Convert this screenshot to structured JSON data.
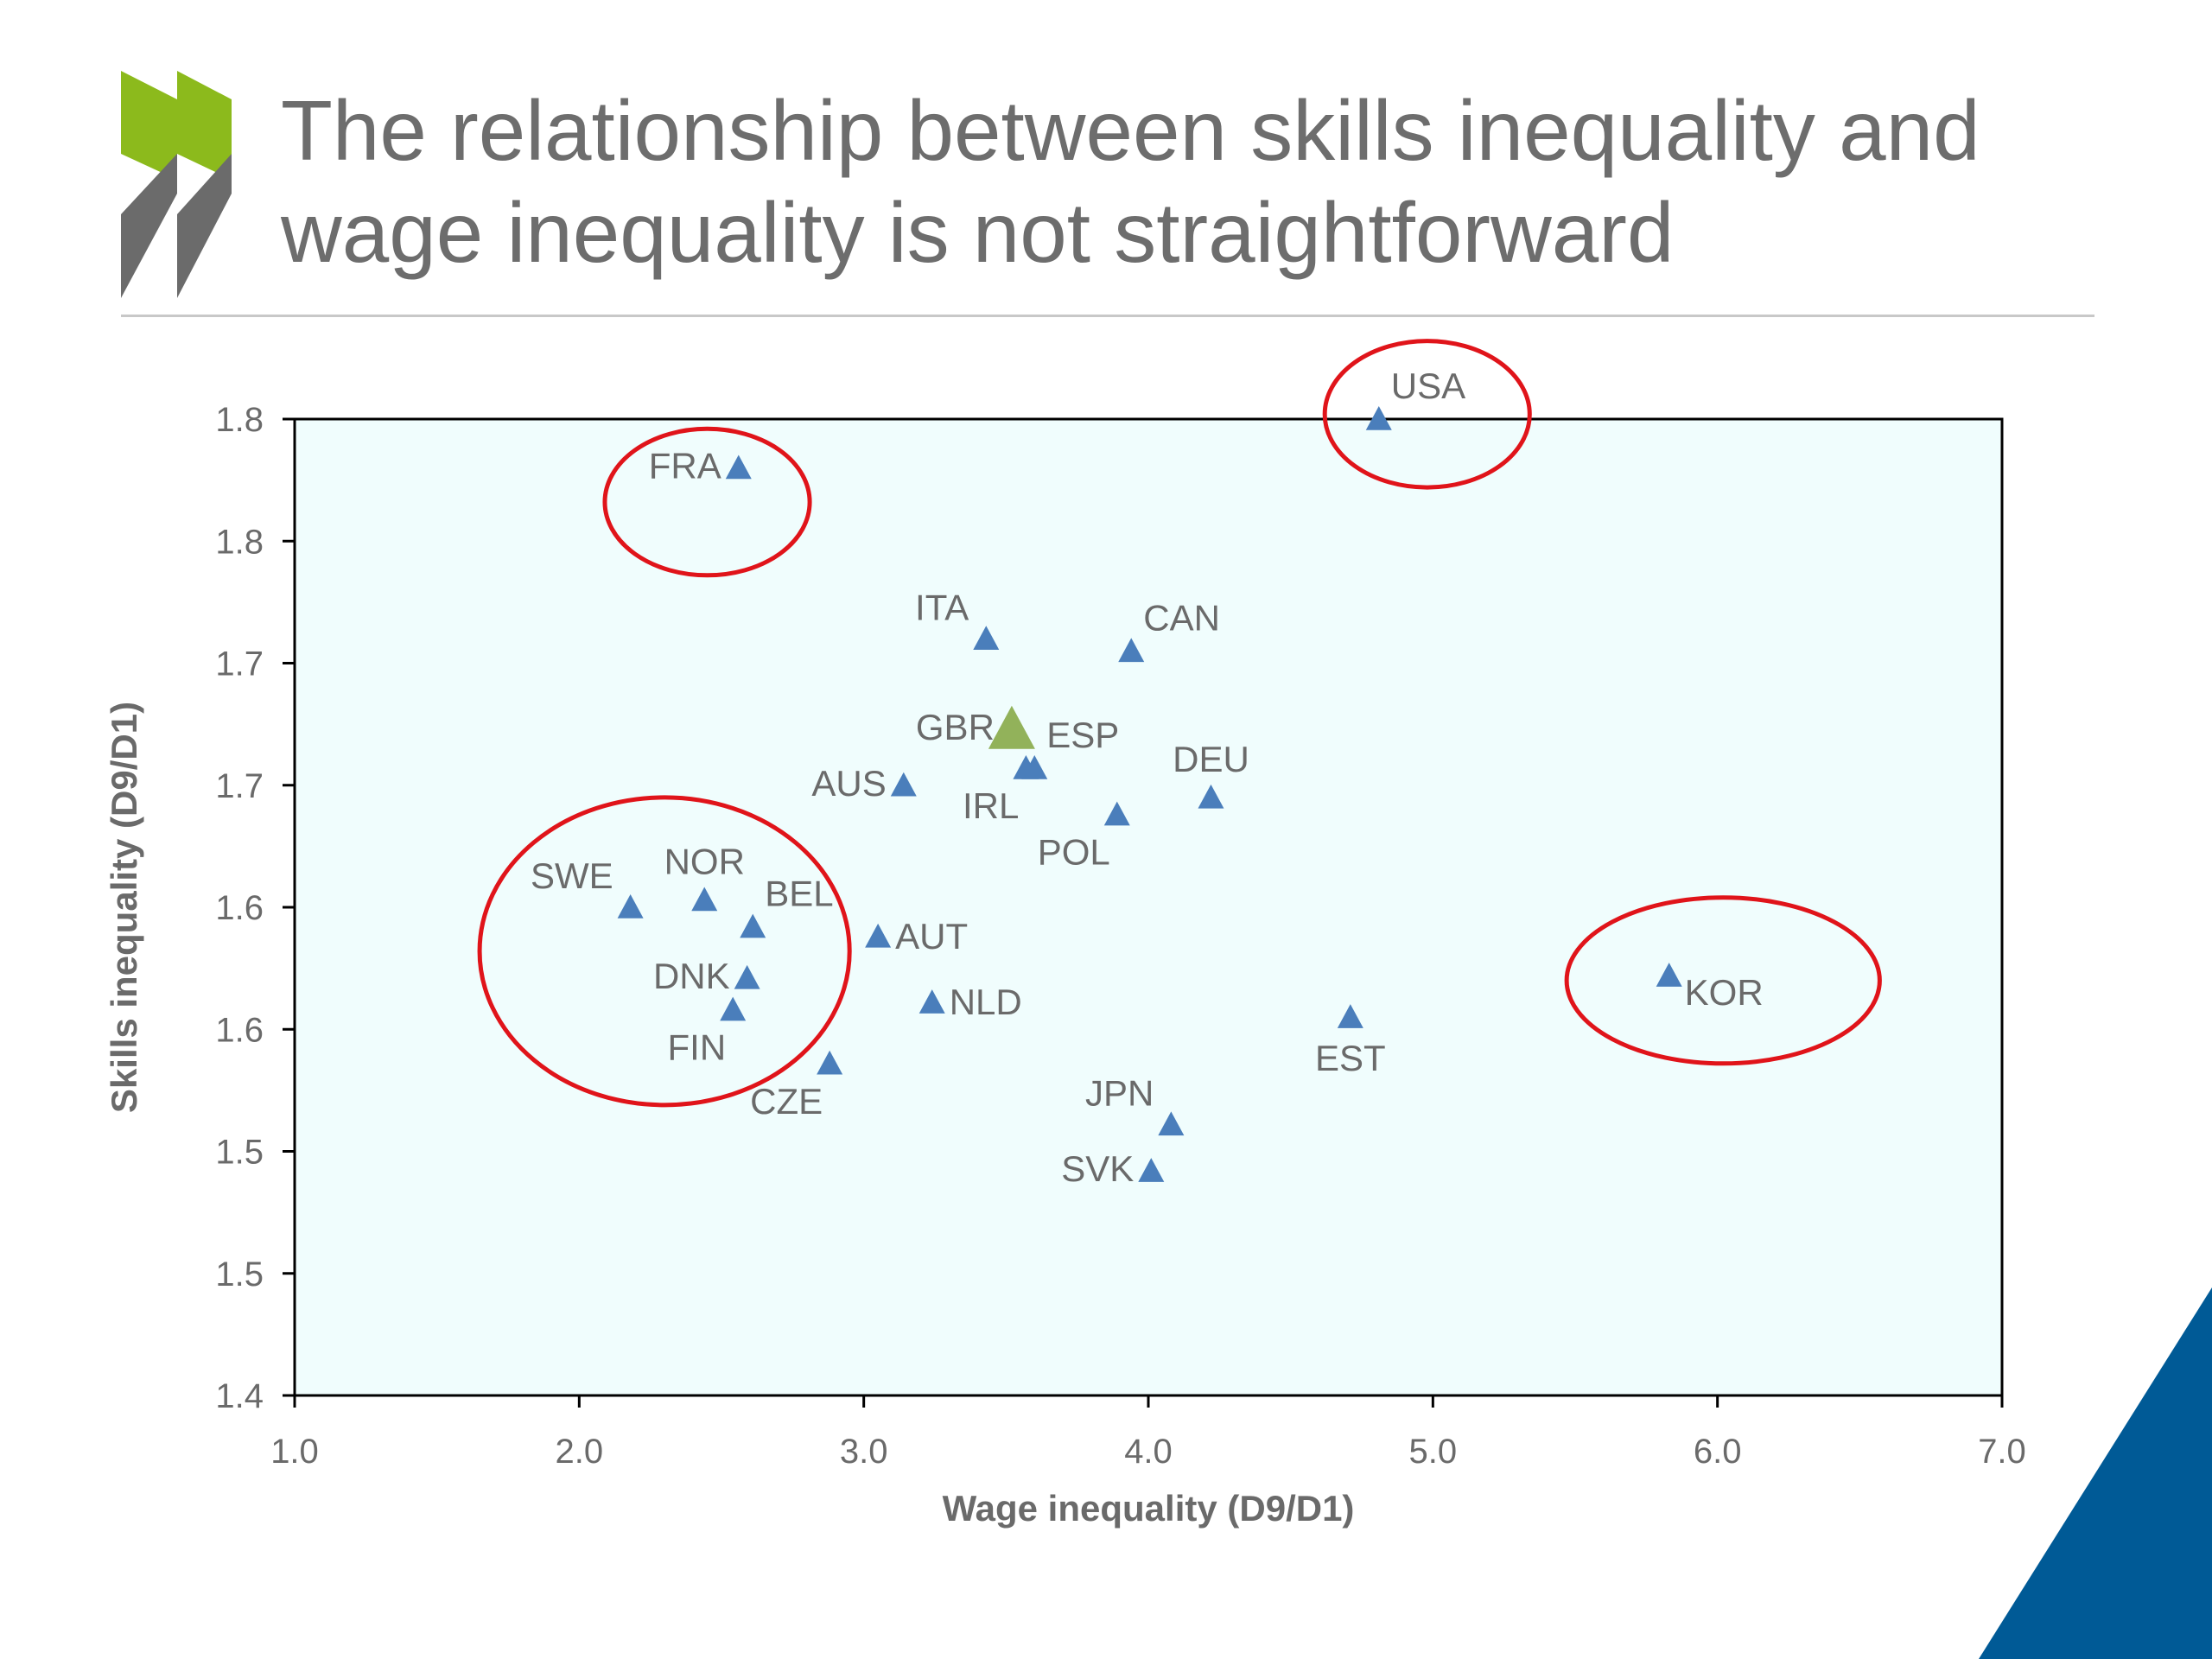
{
  "slide": {
    "title_line1": "The relationship between skills inequality and",
    "title_line2": "wage inequality is not straightforward",
    "colors": {
      "title": "#6d6d6d",
      "logo_green": "#8cba1c",
      "logo_grey": "#6b6b6b",
      "corner_blue": "#005a96"
    }
  },
  "chart_data": {
    "type": "scatter",
    "xlabel": "Wage inequality (D9/D1)",
    "ylabel": "Skills inequality (D9/D1)",
    "xlim": [
      1.0,
      7.0
    ],
    "ylim": [
      1.4,
      1.8
    ],
    "x_ticks": [
      "1.0",
      "2.0",
      "3.0",
      "4.0",
      "5.0",
      "6.0",
      "7.0"
    ],
    "y_ticks": [
      "1.4",
      "1.5",
      "1.5",
      "1.6",
      "1.6",
      "1.7",
      "1.7",
      "1.8",
      "1.8"
    ],
    "grid": false,
    "plot_background": "#f0fdfd",
    "marker_color": "#4a7ebb",
    "highlight_color": "#92b25a",
    "circle_color": "#e0141a",
    "points": [
      {
        "label": "FRA",
        "x": 2.56,
        "y": 1.78,
        "pos": "left"
      },
      {
        "label": "USA",
        "x": 4.81,
        "y": 1.8,
        "pos": "above-right"
      },
      {
        "label": "ITA",
        "x": 3.43,
        "y": 1.71,
        "pos": "above-left"
      },
      {
        "label": "CAN",
        "x": 3.94,
        "y": 1.705,
        "pos": "above-right"
      },
      {
        "label": "GBR",
        "x": 3.52,
        "y": 1.673,
        "pos": "left",
        "highlight": true
      },
      {
        "label": "ESP",
        "x": 3.6,
        "y": 1.657,
        "pos": "above-right"
      },
      {
        "label": "IRL",
        "x": 3.57,
        "y": 1.657,
        "pos": "below-left"
      },
      {
        "label": "AUS",
        "x": 3.14,
        "y": 1.65,
        "pos": "left"
      },
      {
        "label": "DEU",
        "x": 4.22,
        "y": 1.645,
        "pos": "above"
      },
      {
        "label": "POL",
        "x": 3.89,
        "y": 1.638,
        "pos": "below-left"
      },
      {
        "label": "SWE",
        "x": 2.18,
        "y": 1.6,
        "pos": "above-left"
      },
      {
        "label": "NOR",
        "x": 2.44,
        "y": 1.603,
        "pos": "above"
      },
      {
        "label": "BEL",
        "x": 2.61,
        "y": 1.592,
        "pos": "above-right"
      },
      {
        "label": "AUT",
        "x": 3.05,
        "y": 1.588,
        "pos": "right"
      },
      {
        "label": "DNK",
        "x": 2.59,
        "y": 1.571,
        "pos": "left"
      },
      {
        "label": "FIN",
        "x": 2.54,
        "y": 1.558,
        "pos": "below-left"
      },
      {
        "label": "NLD",
        "x": 3.24,
        "y": 1.561,
        "pos": "right"
      },
      {
        "label": "KOR",
        "x": 5.83,
        "y": 1.572,
        "pos": "below-right"
      },
      {
        "label": "EST",
        "x": 4.71,
        "y": 1.555,
        "pos": "below"
      },
      {
        "label": "CZE",
        "x": 2.88,
        "y": 1.536,
        "pos": "below-left"
      },
      {
        "label": "JPN",
        "x": 4.08,
        "y": 1.511,
        "pos": "above-left"
      },
      {
        "label": "SVK",
        "x": 4.01,
        "y": 1.492,
        "pos": "left"
      }
    ],
    "circled_groups": [
      {
        "center": [
          2.45,
          1.766
        ],
        "radius": [
          0.36,
          0.03
        ]
      },
      {
        "center": [
          4.98,
          1.802
        ],
        "radius": [
          0.36,
          0.03
        ]
      },
      {
        "center": [
          2.3,
          1.582
        ],
        "radius": [
          0.65,
          0.063
        ]
      },
      {
        "center": [
          6.02,
          1.57
        ],
        "radius": [
          0.55,
          0.034
        ]
      }
    ]
  }
}
